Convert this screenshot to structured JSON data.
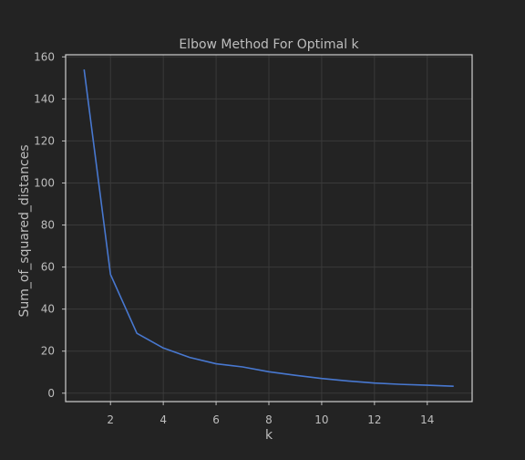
{
  "chart_data": {
    "type": "line",
    "title": "Elbow Method For Optimal k",
    "xlabel": "k",
    "ylabel": "Sum_of_squared_distances",
    "xlim": [
      0.3,
      15.7
    ],
    "ylim": [
      -4,
      161
    ],
    "xticks": [
      2,
      4,
      6,
      8,
      10,
      12,
      14
    ],
    "yticks": [
      0,
      20,
      40,
      60,
      80,
      100,
      120,
      140,
      160
    ],
    "grid": true,
    "x": [
      1,
      2,
      3,
      4,
      5,
      6,
      7,
      8,
      9,
      10,
      11,
      12,
      13,
      14,
      15
    ],
    "series": [
      {
        "values": [
          154,
          56.5,
          28.5,
          21.5,
          17,
          14,
          12.5,
          10.2,
          8.5,
          7,
          5.8,
          4.8,
          4.2,
          3.8,
          3.3
        ],
        "color": "#4878d0"
      }
    ],
    "colors": {
      "background": "#232323",
      "grid": "#3a3a3a",
      "text": "#bdbdbd",
      "frame": "#cfcfcf",
      "line": "#4878d0"
    }
  }
}
